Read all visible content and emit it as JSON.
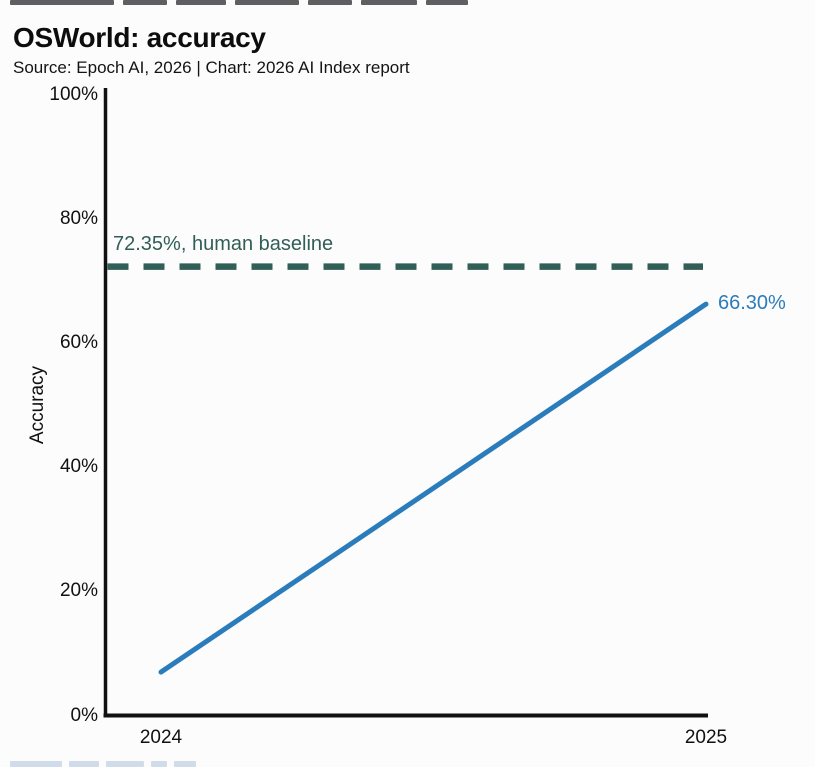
{
  "page": {
    "background": "#fcfcfc"
  },
  "chart_data": {
    "type": "line",
    "title": "OSWorld: accuracy",
    "source": "Source: Epoch AI, 2026 | Chart: 2026 AI Index report",
    "ylabel": "Accuracy",
    "xlabel": "",
    "x": [
      2024,
      2025
    ],
    "xticks": [
      "2024",
      "2025"
    ],
    "series": [
      {
        "name": "OSWorld accuracy",
        "values": [
          7,
          66.3
        ]
      }
    ],
    "end_label": "66.30%",
    "baseline": {
      "value": 72.35,
      "label": "72.35%, human baseline"
    },
    "ylim": [
      0,
      100
    ],
    "ytick_values": [
      0,
      20,
      40,
      60,
      80,
      100
    ],
    "ytick_labels": [
      "0%",
      "20%",
      "40%",
      "60%",
      "80%",
      "100%"
    ],
    "grid": false,
    "legend": "none",
    "colors": {
      "line": "#2b7cbb",
      "baseline": "#315e56",
      "axis": "#111111",
      "text": "#111111"
    }
  }
}
